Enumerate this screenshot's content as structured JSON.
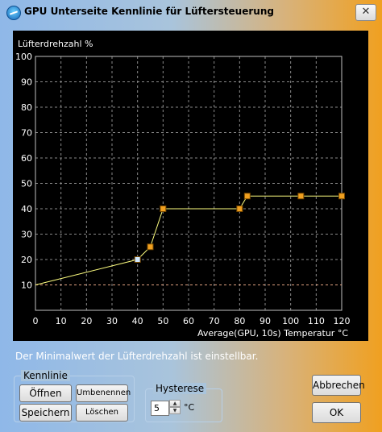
{
  "window": {
    "title": "GPU Unterseite Kennlinie für Lüftersteuerung",
    "close_label": "✕",
    "app_icon": "gpu-fan-app-icon"
  },
  "chart_data": {
    "type": "line",
    "ylabel": "Lüfterdrehzahl %",
    "xlabel": "Average(GPU, 10s) Temperatur °C",
    "xlim": [
      0,
      120
    ],
    "ylim": [
      0,
      100
    ],
    "x_ticks": [
      "0",
      "10",
      "20",
      "30",
      "40",
      "50",
      "60",
      "70",
      "80",
      "90",
      "100",
      "110",
      "120"
    ],
    "y_ticks": [
      "10",
      "20",
      "30",
      "40",
      "50",
      "60",
      "70",
      "80",
      "90",
      "100"
    ],
    "grid": true,
    "series": [
      {
        "values": [
          [
            0,
            10
          ],
          [
            40,
            20
          ],
          [
            45,
            25
          ],
          [
            50,
            40
          ],
          [
            80,
            40
          ],
          [
            83,
            45
          ],
          [
            104,
            45
          ],
          [
            120,
            45
          ]
        ]
      }
    ],
    "control_points": [
      {
        "x": 40,
        "y": 20,
        "selected": true
      },
      {
        "x": 45,
        "y": 25,
        "selected": false
      },
      {
        "x": 50,
        "y": 40,
        "selected": false
      },
      {
        "x": 80,
        "y": 40,
        "selected": false
      },
      {
        "x": 83,
        "y": 45,
        "selected": false
      },
      {
        "x": 104,
        "y": 45,
        "selected": false
      },
      {
        "x": 120,
        "y": 45,
        "selected": false
      }
    ],
    "minimum_line": 10,
    "colors": {
      "background": "#000000",
      "grid": "#8a8a8a",
      "axis": "#c0c0c0",
      "curve": "#ffff80",
      "point": "#f0a020",
      "selected_point": "#cfe8ff",
      "minimum_line": "#e0a080",
      "text": "#ffffff"
    }
  },
  "info_text": "Der Minimalwert der Lüfterdrehzahl ist einstellbar.",
  "kennlinie": {
    "legend": "Kennlinie",
    "open_label": "Öffnen",
    "rename_label": "Umbenennen",
    "save_label": "Speichern",
    "delete_label": "Löschen"
  },
  "hysterese": {
    "legend": "Hysterese",
    "value": "5",
    "unit": "°C"
  },
  "buttons": {
    "cancel_label": "Abbrechen",
    "ok_label": "OK"
  }
}
